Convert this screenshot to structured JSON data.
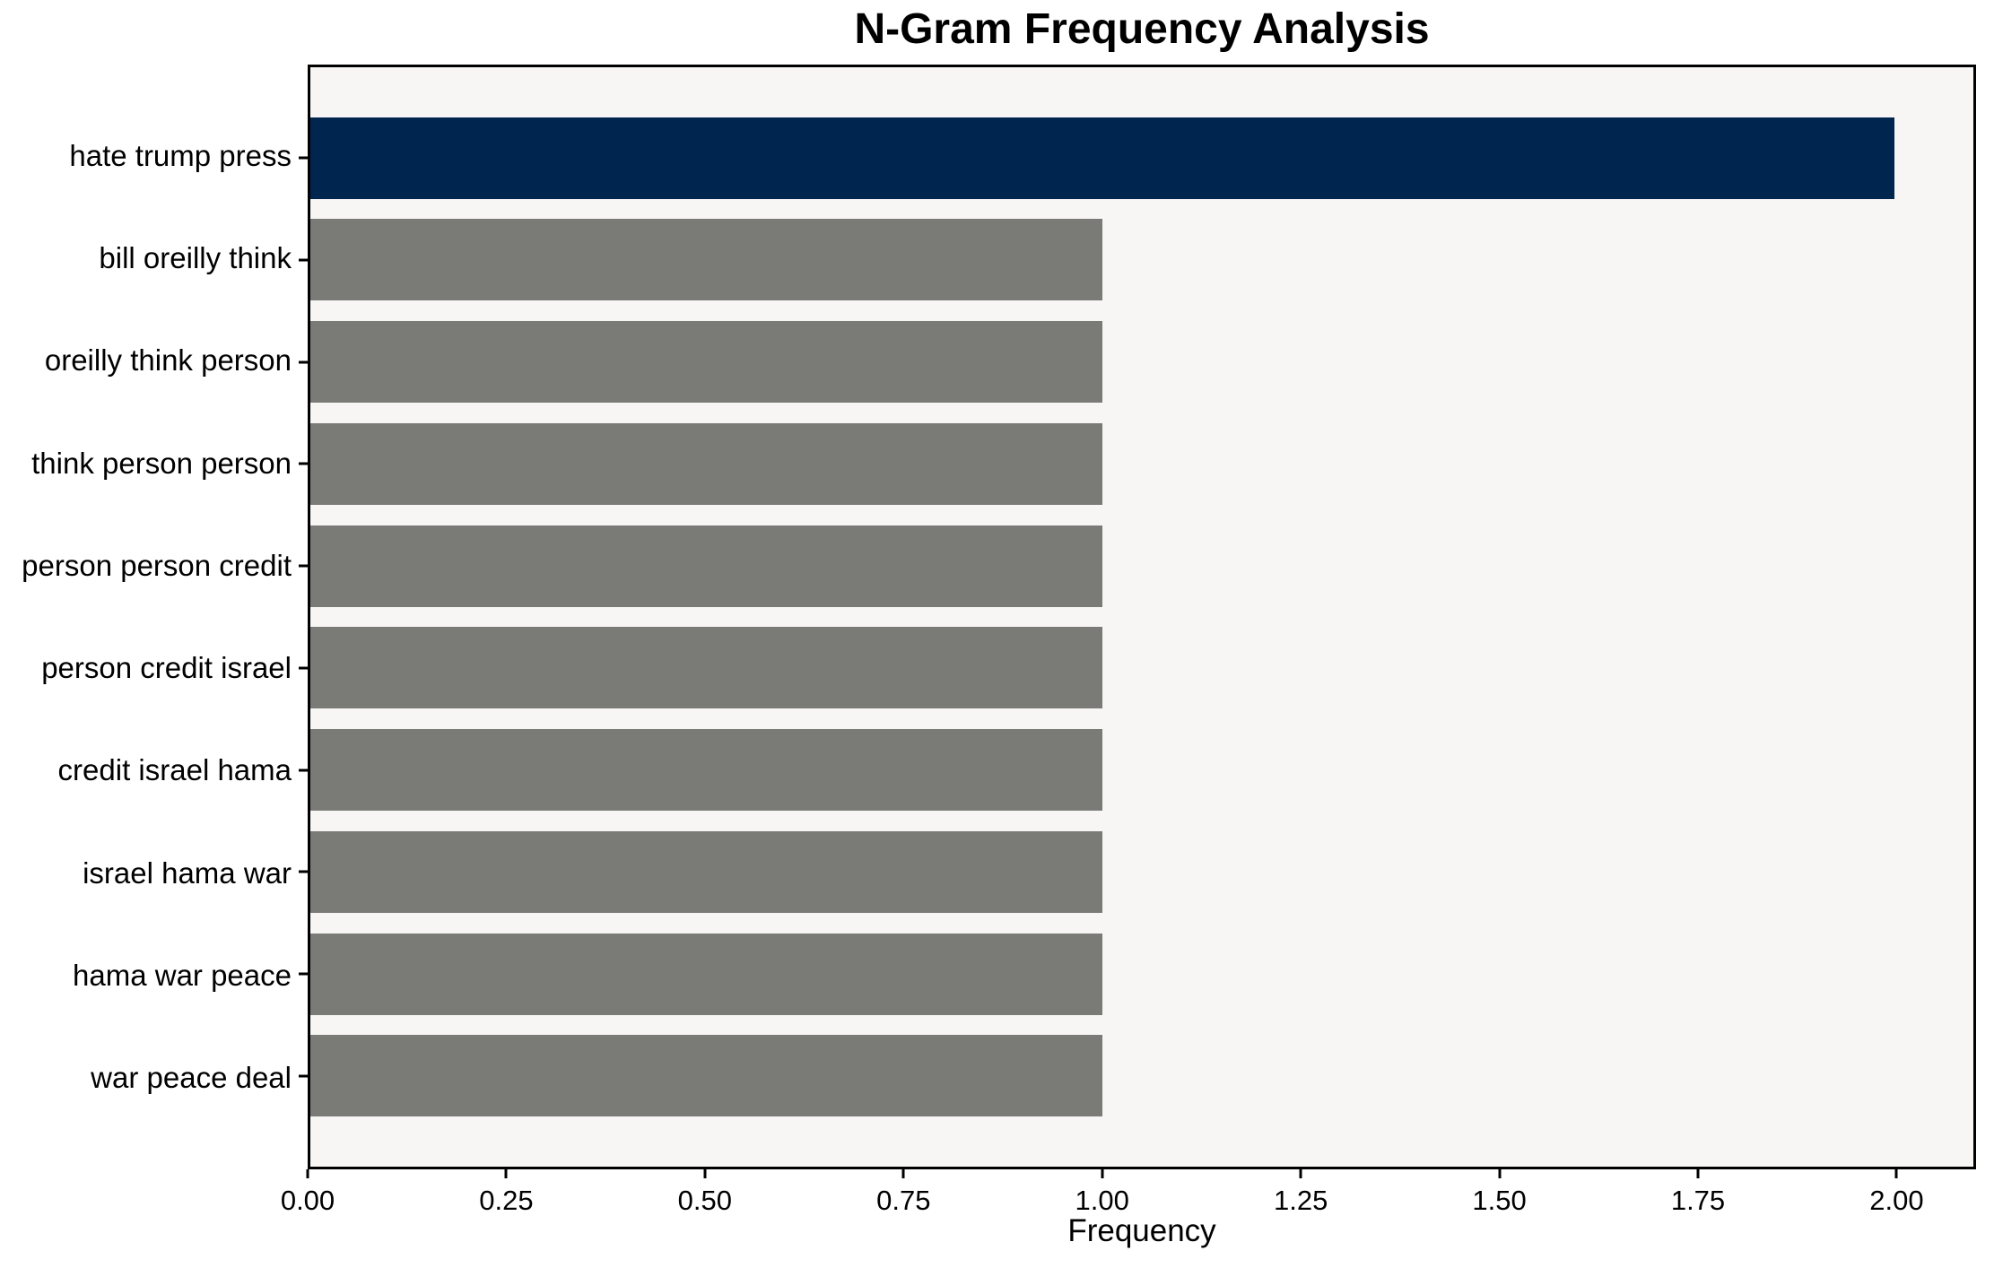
{
  "figure": {
    "background": "#ffffff"
  },
  "chart_data": {
    "type": "bar",
    "orientation": "horizontal",
    "title": "N-Gram Frequency Analysis",
    "xlabel": "Frequency",
    "ylabel": "",
    "categories": [
      "hate trump press",
      "bill oreilly think",
      "oreilly think person",
      "think person person",
      "person person credit",
      "person credit israel",
      "credit israel hama",
      "israel hama war",
      "hama war peace",
      "war peace deal"
    ],
    "values": [
      2,
      1,
      1,
      1,
      1,
      1,
      1,
      1,
      1,
      1
    ],
    "bar_colors": [
      "#00254e",
      "#7a7a76",
      "#7a7a76",
      "#7a7a76",
      "#7a7a76",
      "#7a7a76",
      "#7a7a76",
      "#7a7a76",
      "#7a7a76",
      "#7a7a76"
    ],
    "xlim": [
      0,
      2.1
    ],
    "ylim_units": [
      -0.89,
      9.89
    ],
    "bar_thickness": 0.8,
    "xticks": [
      0,
      0.25,
      0.5,
      0.75,
      1.0,
      1.25,
      1.5,
      1.75,
      2.0
    ],
    "xtick_labels": [
      "0.00",
      "0.25",
      "0.50",
      "0.75",
      "1.00",
      "1.25",
      "1.50",
      "1.75",
      "2.00"
    ],
    "grid": false,
    "legend": null,
    "plot_background": "#f7f6f5",
    "spine_color": "#000000",
    "text_color": "#000000"
  }
}
